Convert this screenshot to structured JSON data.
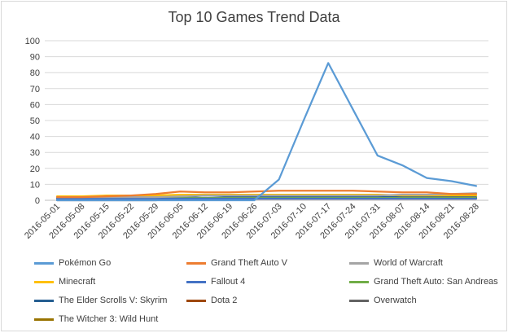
{
  "chart_data": {
    "type": "line",
    "title": "Top 10 Games Trend Data",
    "xlabel": "",
    "ylabel": "",
    "ylim": [
      0,
      100
    ],
    "yticks": [
      0,
      10,
      20,
      30,
      40,
      50,
      60,
      70,
      80,
      90,
      100
    ],
    "grid": "horizontal",
    "legend_position": "bottom",
    "x": [
      "2016-05-01",
      "2016-05-08",
      "2016-05-15",
      "2016-05-22",
      "2016-05-29",
      "2016-06-05",
      "2016-06-12",
      "2016-06-19",
      "2016-06-26",
      "2016-07-03",
      "2016-07-10",
      "2016-07-17",
      "2016-07-24",
      "2016-07-31",
      "2016-08-07",
      "2016-08-14",
      "2016-08-21",
      "2016-08-28"
    ],
    "series": [
      {
        "name": "Pokémon Go",
        "color": "#5b9bd5",
        "values": [
          0,
          0,
          0,
          0,
          0,
          0,
          0,
          0,
          0,
          13,
          50,
          86,
          57,
          28,
          22,
          14,
          12,
          9
        ]
      },
      {
        "name": "Grand Theft Auto V",
        "color": "#ed7d31",
        "values": [
          2,
          2,
          2.5,
          3,
          4,
          5.5,
          5,
          5,
          5.5,
          6,
          6,
          6,
          6,
          5.5,
          5,
          5,
          4,
          4
        ]
      },
      {
        "name": "World of Warcraft",
        "color": "#a5a5a5",
        "values": [
          2,
          2,
          2,
          2,
          2,
          2.5,
          3,
          3,
          3,
          3,
          3,
          3,
          3,
          3,
          3.5,
          3.5,
          4,
          4.5
        ]
      },
      {
        "name": "Minecraft",
        "color": "#ffc000",
        "values": [
          2.5,
          2.5,
          3,
          3,
          3,
          3.5,
          3.5,
          3.5,
          3.5,
          3.5,
          3.5,
          3.5,
          3.5,
          3.5,
          3,
          3,
          3,
          3
        ]
      },
      {
        "name": "Fallout 4",
        "color": "#4472c4",
        "values": [
          1,
          1,
          1,
          1,
          1,
          1,
          1,
          1,
          1,
          1,
          1,
          1,
          1,
          1,
          1,
          1,
          1,
          1
        ]
      },
      {
        "name": "Grand Theft Auto: San Andreas",
        "color": "#70ad47",
        "values": [
          1.5,
          1.5,
          1.5,
          1.5,
          1.5,
          1.5,
          1.5,
          1.5,
          1.5,
          1.5,
          1.5,
          1.5,
          1.5,
          1.5,
          1.5,
          1.5,
          1.5,
          1.5
        ]
      },
      {
        "name": "The Elder Scrolls V: Skyrim",
        "color": "#255e91",
        "values": [
          2,
          2,
          2,
          2,
          2,
          2,
          3,
          2.5,
          2,
          2,
          2,
          2,
          2,
          2,
          2,
          2,
          2,
          2
        ]
      },
      {
        "name": "Dota 2",
        "color": "#9e480e",
        "values": [
          1,
          1,
          1,
          1,
          1,
          1,
          1,
          1,
          1,
          1,
          1,
          1,
          1,
          1,
          1,
          1,
          1,
          1
        ]
      },
      {
        "name": "Overwatch",
        "color": "#636363",
        "values": [
          0,
          0,
          0,
          0,
          0,
          1,
          1,
          1,
          1,
          1,
          1,
          1,
          1,
          1,
          1,
          1,
          1,
          1
        ]
      },
      {
        "name": "The Witcher 3: Wild Hunt",
        "color": "#997300",
        "values": [
          1.5,
          1.5,
          1.5,
          1.5,
          1.5,
          1.5,
          1.5,
          1.5,
          1.5,
          1.5,
          1.5,
          1.5,
          1.5,
          1.5,
          1.5,
          1.5,
          1.5,
          1.5
        ]
      }
    ]
  }
}
